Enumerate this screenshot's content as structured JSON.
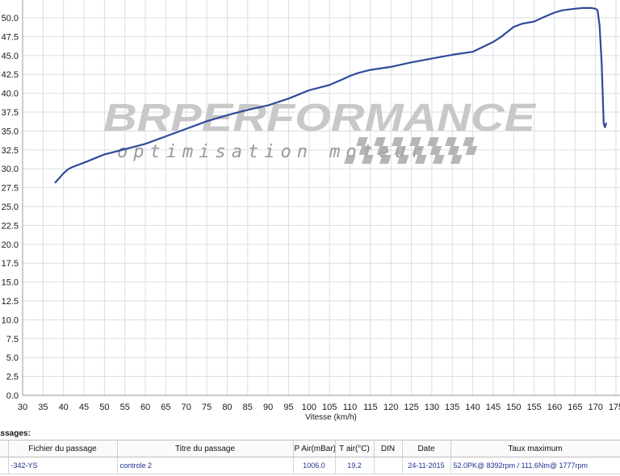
{
  "chart_data": {
    "type": "line",
    "title": "",
    "xlabel": "Vitesse (km/h)",
    "ylabel": "",
    "xlim": [
      30,
      175
    ],
    "ylim": [
      0,
      51.5
    ],
    "grid": true,
    "x_ticks": [
      30,
      35,
      40,
      45,
      50,
      55,
      60,
      65,
      70,
      75,
      80,
      85,
      90,
      95,
      100,
      105,
      110,
      115,
      120,
      125,
      130,
      135,
      140,
      145,
      150,
      155,
      160,
      165,
      170,
      175
    ],
    "y_ticks": [
      0.0,
      2.5,
      5.0,
      7.5,
      10.0,
      12.5,
      15.0,
      17.5,
      20.0,
      22.5,
      25.0,
      27.5,
      30.0,
      32.5,
      35.0,
      37.5,
      40.0,
      42.5,
      45.0,
      47.5,
      50.0
    ],
    "y_tick_labels": [
      "0.0",
      "2.5",
      "5.0",
      "7.5",
      "10.0",
      "12.5",
      "15.0",
      "17.5",
      "20.0",
      "22.5",
      "25.0",
      "27.5",
      "30.0",
      "32.5",
      "35.0",
      "37.5",
      "40.0",
      "42.5",
      "45.0",
      "47.5",
      "50.0"
    ],
    "x_tick_labels": [
      "30",
      "35",
      "40",
      "45",
      "50",
      "55",
      "60",
      "65",
      "70",
      "75",
      "80",
      "85",
      "90",
      "95",
      "100",
      "105",
      "110",
      "115",
      "120",
      "125",
      "130",
      "135",
      "140",
      "145",
      "150",
      "155",
      "160",
      "165",
      "170",
      "175"
    ],
    "series": [
      {
        "name": "",
        "color": "#2f4a9a",
        "x": [
          38,
          40,
          41,
          42,
          45,
          50,
          55,
          60,
          65,
          70,
          75,
          80,
          85,
          90,
          95,
          100,
          105,
          108,
          110,
          112,
          115,
          120,
          125,
          130,
          135,
          140,
          145,
          147,
          150,
          152,
          155,
          157,
          160,
          162,
          165,
          167,
          168,
          169,
          170,
          170.5,
          171,
          171.5,
          172,
          172.3,
          172.6
        ],
        "y": [
          28.2,
          29.4,
          29.9,
          30.2,
          30.8,
          31.9,
          32.6,
          33.3,
          34.3,
          35.3,
          36.3,
          37.1,
          37.8,
          38.4,
          39.3,
          40.4,
          41.1,
          41.8,
          42.3,
          42.7,
          43.1,
          43.5,
          44.1,
          44.6,
          45.1,
          45.5,
          46.8,
          47.5,
          48.8,
          49.2,
          49.5,
          50.0,
          50.7,
          51.0,
          51.2,
          51.3,
          51.3,
          51.3,
          51.2,
          51.0,
          49.0,
          44.0,
          36.0,
          35.5,
          36.0
        ]
      }
    ]
  },
  "watermark": {
    "brand": "BRPERFORMANCE",
    "tagline": "optimisation moteur"
  },
  "passages": {
    "title": "assages:",
    "headers": [
      "",
      "Fichier du passage",
      "Titre du passage",
      "P Air(mBar)",
      "T air(°C)",
      "DIN",
      "Date",
      "Taux maximum"
    ],
    "rows": [
      [
        "",
        "-342-YS",
        "controle 2",
        "1006.0",
        "19.2",
        "",
        "24-11-2015",
        "52.0PK@ 8392rpm / 111.6Nm@ 1777rpm"
      ]
    ]
  }
}
